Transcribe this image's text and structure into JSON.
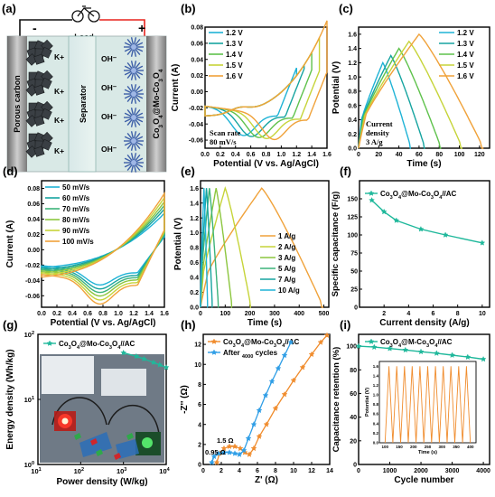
{
  "colors": {
    "v12": "#1fb3d6",
    "v13": "#16a4a0",
    "v14": "#5fc24c",
    "v15": "#c6d439",
    "v16": "#f0a23a",
    "teal": "#1fb89b",
    "blue": "#2f9ee6",
    "orange": "#f08c2d",
    "red": "#e8231d",
    "black": "#111111"
  },
  "panel_a": {
    "label": "(a)",
    "load_label": "Load",
    "minus": "-",
    "plus": "+",
    "left_electrode": "Porous carbon",
    "separator": "Separator",
    "right_electrode": "Co3O4@Mo-Co3O4",
    "kplus": "K+",
    "ohminus": "OH⁻"
  },
  "chart_data": [
    {
      "id": "b",
      "label": "(b)",
      "type": "line",
      "xlabel": "Potential (V vs. Ag/AgCl)",
      "ylabel": "Current (A)",
      "xlim": [
        0.0,
        1.6
      ],
      "ylim": [
        -0.07,
        0.08
      ],
      "xticks": [
        "0.0",
        "0.2",
        "0.4",
        "0.6",
        "0.8",
        "1.0",
        "1.2",
        "1.4",
        "1.6"
      ],
      "yticks": [
        "-0.06",
        "-0.04",
        "-0.02",
        "0.00",
        "0.02",
        "0.04",
        "0.06",
        "0.08"
      ],
      "annotation": [
        "Scan rate",
        "80 mV/s"
      ],
      "series": [
        {
          "name": "1.2 V",
          "vmax": 1.2
        },
        {
          "name": "1.3 V",
          "vmax": 1.3
        },
        {
          "name": "1.4 V",
          "vmax": 1.4
        },
        {
          "name": "1.5 V",
          "vmax": 1.5
        },
        {
          "name": "1.6 V",
          "vmax": 1.6
        }
      ]
    },
    {
      "id": "c",
      "label": "(c)",
      "type": "line",
      "xlabel": "Time (s)",
      "ylabel": "Potential (V)",
      "xlim": [
        0,
        130
      ],
      "ylim": [
        0.0,
        1.7
      ],
      "xticks": [
        "0",
        "20",
        "40",
        "60",
        "80",
        "100",
        "120"
      ],
      "yticks": [
        "0.0",
        "0.2",
        "0.4",
        "0.6",
        "0.8",
        "1.0",
        "1.2",
        "1.4",
        "1.6"
      ],
      "annotation": [
        "Current",
        "density",
        "3 A/g"
      ],
      "series": [
        {
          "name": "1.2 V",
          "vmax": 1.2,
          "t_peak": 24,
          "t_end": 52
        },
        {
          "name": "1.3 V",
          "vmax": 1.3,
          "t_peak": 32,
          "t_end": 66
        },
        {
          "name": "1.4 V",
          "vmax": 1.4,
          "t_peak": 40,
          "t_end": 82
        },
        {
          "name": "1.5 V",
          "vmax": 1.5,
          "t_peak": 50,
          "t_end": 103
        },
        {
          "name": "1.6 V",
          "vmax": 1.6,
          "t_peak": 60,
          "t_end": 124
        }
      ]
    },
    {
      "id": "d",
      "label": "(d)",
      "type": "line",
      "xlabel": "Potential (V vs. Ag/AgCl)",
      "ylabel": "Current (A)",
      "xlim": [
        0.0,
        1.6
      ],
      "ylim": [
        -0.075,
        0.09
      ],
      "xticks": [
        "0.0",
        "0.2",
        "0.4",
        "0.6",
        "0.8",
        "1.0",
        "1.2",
        "1.4",
        "1.6"
      ],
      "yticks": [
        "-0.06",
        "-0.04",
        "-0.02",
        "0.00",
        "0.02",
        "0.04",
        "0.06",
        "0.08"
      ],
      "series": [
        {
          "name": "50 mV/s",
          "scale": 0.7
        },
        {
          "name": "60 mV/s",
          "scale": 0.78
        },
        {
          "name": "70 mV/s",
          "scale": 0.85
        },
        {
          "name": "80 mV/s",
          "scale": 0.92
        },
        {
          "name": "90 mV/s",
          "scale": 1.0
        },
        {
          "name": "100 mV/s",
          "scale": 1.08
        }
      ]
    },
    {
      "id": "e",
      "label": "(e)",
      "type": "line",
      "xlabel": "Time (s)",
      "ylabel": "Potential (V)",
      "xlim": [
        0,
        520
      ],
      "ylim": [
        0.0,
        1.7
      ],
      "xticks": [
        "0",
        "100",
        "200",
        "300",
        "400",
        "500"
      ],
      "yticks": [
        "0.0",
        "0.2",
        "0.4",
        "0.6",
        "0.8",
        "1.0",
        "1.2",
        "1.4",
        "1.6"
      ],
      "series": [
        {
          "name": "1 A/g",
          "t_peak": 248,
          "t_end": 498
        },
        {
          "name": "2 A/g",
          "t_peak": 100,
          "t_end": 205
        },
        {
          "name": "3 A/g",
          "t_peak": 63,
          "t_end": 128
        },
        {
          "name": "5 A/g",
          "t_peak": 36,
          "t_end": 73
        },
        {
          "name": "7 A/g",
          "t_peak": 24,
          "t_end": 48
        },
        {
          "name": "10 A/g",
          "t_peak": 14,
          "t_end": 29
        }
      ]
    },
    {
      "id": "f",
      "label": "(f)",
      "type": "line",
      "xlabel": "Current density (A/g)",
      "ylabel": "Specific capacitance (F/g)",
      "xlim": [
        0,
        10.6
      ],
      "ylim": [
        0,
        175
      ],
      "xticks": [
        "2",
        "4",
        "6",
        "8",
        "10"
      ],
      "yticks": [
        "0",
        "25",
        "50",
        "75",
        "100",
        "125",
        "150"
      ],
      "series": [
        {
          "name": "Co3O4@Mo-Co3O4//AC",
          "x": [
            1,
            2,
            3,
            5,
            7,
            10
          ],
          "y": [
            148,
            132,
            120,
            108,
            100,
            89
          ]
        }
      ]
    },
    {
      "id": "g",
      "label": "(g)",
      "type": "line",
      "xlabel": "Power density (W/kg)",
      "ylabel": "Energy density (Wh/kg)",
      "xlim_log": [
        1,
        4
      ],
      "ylim_log": [
        0,
        2
      ],
      "xticks": [
        "10^1",
        "10^2",
        "10^3",
        "10^4"
      ],
      "yticks": [
        "10^0",
        "10^1",
        "10^2"
      ],
      "series": [
        {
          "name": "Co3O4@Mo-Co3O4//AC",
          "x": [
            1000,
            2000,
            3000,
            5000,
            7000,
            10000
          ],
          "y": [
            52,
            46,
            42,
            37,
            34,
            31
          ]
        }
      ]
    },
    {
      "id": "h",
      "label": "(h)",
      "type": "line",
      "xlabel": "Z' (Ω)",
      "ylabel": "-Z'' (Ω)",
      "xlim": [
        0,
        14
      ],
      "ylim": [
        0,
        13
      ],
      "xticks": [
        "0",
        "2",
        "4",
        "6",
        "8",
        "10",
        "12",
        "14"
      ],
      "yticks": [
        "0",
        "2",
        "4",
        "6",
        "8",
        "10",
        "12"
      ],
      "annotations": [
        "0.95 Ω",
        "1.5 Ω"
      ],
      "series": [
        {
          "name": "Co3O4@Mo-Co3O4//AC",
          "x": [
            1.5,
            1.8,
            2.3,
            2.9,
            3.5,
            4.1,
            4.6,
            5.1,
            5.6,
            6.2,
            7.0,
            8.0,
            9.0,
            10.0,
            11.0,
            12.0,
            13.0,
            13.7
          ],
          "y": [
            0.2,
            1.1,
            1.6,
            1.8,
            1.8,
            1.6,
            1.2,
            1.0,
            1.6,
            2.8,
            4.0,
            5.6,
            7.0,
            8.4,
            9.7,
            11.0,
            12.2,
            12.9
          ]
        },
        {
          "name": "After 4000 cycles",
          "x": [
            0.95,
            1.2,
            1.7,
            2.3,
            2.9,
            3.5,
            4.0,
            4.5,
            5.0,
            5.6,
            6.2,
            6.9,
            7.6,
            8.3,
            9.0,
            9.7
          ],
          "y": [
            0.2,
            0.8,
            1.1,
            1.2,
            1.2,
            1.1,
            1.0,
            1.4,
            2.6,
            4.0,
            5.4,
            6.9,
            8.3,
            9.6,
            10.9,
            12.2
          ]
        }
      ]
    },
    {
      "id": "i",
      "label": "(i)",
      "type": "line",
      "xlabel": "Cycle number",
      "ylabel": "Capacitance retention (%)",
      "xlim": [
        0,
        4200
      ],
      "ylim": [
        0,
        110
      ],
      "xticks": [
        "0",
        "1000",
        "2000",
        "3000",
        "4000"
      ],
      "yticks": [
        "0",
        "20",
        "40",
        "60",
        "80",
        "100"
      ],
      "series": [
        {
          "name": "Co3O4@M-Co3O4//AC",
          "x": [
            0,
            500,
            1000,
            1500,
            2000,
            2500,
            3000,
            3500,
            4000
          ],
          "y": [
            100,
            99.2,
            98,
            96.8,
            95.3,
            94,
            92.4,
            90.8,
            89
          ]
        }
      ],
      "inset": {
        "xlabel": "Time (s)",
        "ylabel": "Potential (V)",
        "xticks": [
          "100",
          "150",
          "200",
          "250",
          "300",
          "350",
          "400"
        ],
        "yticks": [
          "0.0",
          "0.2",
          "0.4",
          "0.6",
          "0.8",
          "1.0",
          "1.2",
          "1.4",
          "1.6"
        ],
        "cycles": 11
      }
    }
  ]
}
